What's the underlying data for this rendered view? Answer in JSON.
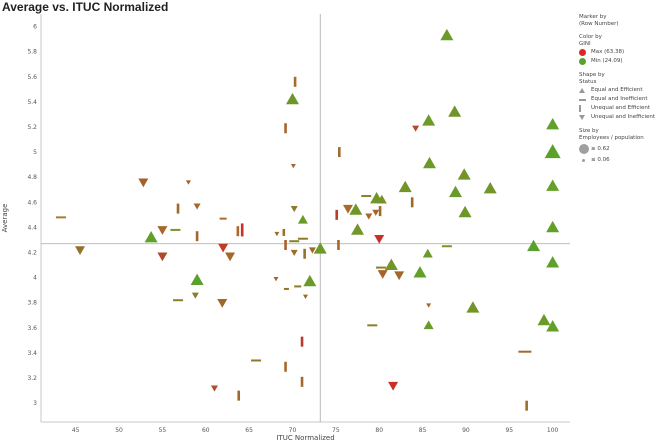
{
  "chart_data": {
    "type": "scatter",
    "title": "Average vs. ITUC Normalized",
    "xlabel": "ITUC Normalized",
    "ylabel": "Average",
    "xlim": [
      41,
      102
    ],
    "ylim": [
      2.85,
      6.1
    ],
    "x_ticks": [
      45,
      50,
      55,
      60,
      65,
      70,
      75,
      80,
      85,
      90,
      95,
      100
    ],
    "y_ticks": [
      3.0,
      3.2,
      3.4,
      3.6,
      3.8,
      4.0,
      4.2,
      4.4,
      4.6,
      4.8,
      5.0,
      5.2,
      5.4,
      5.6,
      5.8,
      6.0
    ],
    "x_tick_labels": [
      "45",
      "50",
      "55",
      "60",
      "65",
      "70",
      "75",
      "80",
      "85",
      "90",
      "95",
      "100"
    ],
    "y_tick_labels": [
      "3",
      "3.2",
      "3.4",
      "3.6",
      "3.8",
      "4",
      "4.2",
      "4.4",
      "4.6",
      "4.8",
      "5",
      "5.2",
      "5.4",
      "5.6",
      "5.8",
      "6"
    ],
    "reference_lines": {
      "x": 73.2,
      "y": 4.27
    },
    "grid": false,
    "legend_position": "right",
    "colors": {
      "max": "#d42a2a",
      "min": "#5aa02c",
      "mid": "#a0602c",
      "axis": "#bbbbbb",
      "refline": "#aaaaaa"
    },
    "points": [
      {
        "x": 87.8,
        "y": 5.93,
        "shape": "up",
        "size": "l",
        "color": "#6b9a28"
      },
      {
        "x": 70.3,
        "y": 5.56,
        "shape": "v",
        "size": "m",
        "color": "#a86a2a"
      },
      {
        "x": 70.0,
        "y": 5.42,
        "shape": "up",
        "size": "l",
        "color": "#6e9628"
      },
      {
        "x": 88.7,
        "y": 5.32,
        "shape": "up",
        "size": "l",
        "color": "#70942a"
      },
      {
        "x": 85.7,
        "y": 5.25,
        "shape": "up",
        "size": "l",
        "color": "#6c9a28"
      },
      {
        "x": 100.0,
        "y": 5.22,
        "shape": "up",
        "size": "l",
        "color": "#63a02a"
      },
      {
        "x": 69.2,
        "y": 5.19,
        "shape": "v",
        "size": "m",
        "color": "#a6642a"
      },
      {
        "x": 84.2,
        "y": 5.19,
        "shape": "down",
        "size": "s",
        "color": "#b8482a"
      },
      {
        "x": 75.4,
        "y": 5.0,
        "shape": "v",
        "size": "m",
        "color": "#9c702a"
      },
      {
        "x": 100.0,
        "y": 5.0,
        "shape": "up",
        "size": "xl",
        "color": "#5aa02c"
      },
      {
        "x": 85.8,
        "y": 4.91,
        "shape": "up",
        "size": "l",
        "color": "#6a9a28"
      },
      {
        "x": 70.1,
        "y": 4.89,
        "shape": "down",
        "size": "xs",
        "color": "#a86a2a"
      },
      {
        "x": 89.8,
        "y": 4.82,
        "shape": "up",
        "size": "l",
        "color": "#76922a"
      },
      {
        "x": 52.8,
        "y": 4.76,
        "shape": "down",
        "size": "m",
        "color": "#a0622a"
      },
      {
        "x": 58.0,
        "y": 4.76,
        "shape": "down",
        "size": "xs",
        "color": "#a2602a"
      },
      {
        "x": 83.0,
        "y": 4.72,
        "shape": "up",
        "size": "l",
        "color": "#74942a"
      },
      {
        "x": 92.8,
        "y": 4.71,
        "shape": "up",
        "size": "l",
        "color": "#72962a"
      },
      {
        "x": 100.0,
        "y": 4.73,
        "shape": "up",
        "size": "l",
        "color": "#65a02a"
      },
      {
        "x": 88.8,
        "y": 4.68,
        "shape": "up",
        "size": "l",
        "color": "#6c9a28"
      },
      {
        "x": 78.5,
        "y": 4.65,
        "shape": "h",
        "size": "m",
        "color": "#8c802a"
      },
      {
        "x": 79.7,
        "y": 4.63,
        "shape": "up",
        "size": "l",
        "color": "#6e9628"
      },
      {
        "x": 80.3,
        "y": 4.62,
        "shape": "up",
        "size": "m",
        "color": "#7a902a"
      },
      {
        "x": 83.8,
        "y": 4.6,
        "shape": "v",
        "size": "m",
        "color": "#a0662a"
      },
      {
        "x": 59.0,
        "y": 4.57,
        "shape": "down",
        "size": "s",
        "color": "#a8682a"
      },
      {
        "x": 56.8,
        "y": 4.55,
        "shape": "v",
        "size": "m",
        "color": "#9c6a2a"
      },
      {
        "x": 70.2,
        "y": 4.55,
        "shape": "down",
        "size": "s",
        "color": "#8a7a2a"
      },
      {
        "x": 76.4,
        "y": 4.55,
        "shape": "down",
        "size": "m",
        "color": "#a86a2a"
      },
      {
        "x": 77.3,
        "y": 4.54,
        "shape": "up",
        "size": "l",
        "color": "#709628"
      },
      {
        "x": 80.1,
        "y": 4.53,
        "shape": "v",
        "size": "m",
        "color": "#9c6a2a"
      },
      {
        "x": 89.9,
        "y": 4.52,
        "shape": "up",
        "size": "l",
        "color": "#6e9628"
      },
      {
        "x": 79.6,
        "y": 4.52,
        "shape": "down",
        "size": "s",
        "color": "#a8642a"
      },
      {
        "x": 75.1,
        "y": 4.5,
        "shape": "v",
        "size": "m",
        "color": "#b8402a"
      },
      {
        "x": 78.8,
        "y": 4.49,
        "shape": "down",
        "size": "s",
        "color": "#aa662a"
      },
      {
        "x": 43.3,
        "y": 4.48,
        "shape": "h",
        "size": "m",
        "color": "#a87a2a"
      },
      {
        "x": 62.0,
        "y": 4.47,
        "shape": "h",
        "size": "s",
        "color": "#ae6c2a"
      },
      {
        "x": 71.2,
        "y": 4.46,
        "shape": "up",
        "size": "m",
        "color": "#6a9a28"
      },
      {
        "x": 100.0,
        "y": 4.4,
        "shape": "up",
        "size": "l",
        "color": "#62a02a"
      },
      {
        "x": 64.2,
        "y": 4.38,
        "shape": "v",
        "size": "l",
        "color": "#c8302a"
      },
      {
        "x": 63.7,
        "y": 4.37,
        "shape": "v",
        "size": "m",
        "color": "#aa682a"
      },
      {
        "x": 56.5,
        "y": 4.38,
        "shape": "h",
        "size": "m",
        "color": "#7c922a"
      },
      {
        "x": 55.0,
        "y": 4.38,
        "shape": "down",
        "size": "m",
        "color": "#a6682a"
      },
      {
        "x": 77.5,
        "y": 4.38,
        "shape": "up",
        "size": "l",
        "color": "#72962a"
      },
      {
        "x": 69.0,
        "y": 4.36,
        "shape": "v",
        "size": "s",
        "color": "#9c702a"
      },
      {
        "x": 68.2,
        "y": 4.35,
        "shape": "down",
        "size": "xs",
        "color": "#a86a2a"
      },
      {
        "x": 59.0,
        "y": 4.33,
        "shape": "v",
        "size": "m",
        "color": "#a6662a"
      },
      {
        "x": 53.7,
        "y": 4.32,
        "shape": "up",
        "size": "l",
        "color": "#60a02a"
      },
      {
        "x": 71.2,
        "y": 4.31,
        "shape": "h",
        "size": "m",
        "color": "#8a7c2a"
      },
      {
        "x": 80.0,
        "y": 4.31,
        "shape": "down",
        "size": "m",
        "color": "#c8302a"
      },
      {
        "x": 70.2,
        "y": 4.29,
        "shape": "h",
        "size": "m",
        "color": "#86822a"
      },
      {
        "x": 69.2,
        "y": 4.26,
        "shape": "v",
        "size": "m",
        "color": "#aa622a"
      },
      {
        "x": 75.3,
        "y": 4.26,
        "shape": "v",
        "size": "m",
        "color": "#a8662a"
      },
      {
        "x": 87.8,
        "y": 4.25,
        "shape": "h",
        "size": "m",
        "color": "#7e902a"
      },
      {
        "x": 97.8,
        "y": 4.25,
        "shape": "up",
        "size": "l",
        "color": "#5aa02c"
      },
      {
        "x": 62.0,
        "y": 4.24,
        "shape": "down",
        "size": "m",
        "color": "#c23a2a"
      },
      {
        "x": 73.2,
        "y": 4.23,
        "shape": "up",
        "size": "l",
        "color": "#6a9a28"
      },
      {
        "x": 45.5,
        "y": 4.22,
        "shape": "down",
        "size": "m",
        "color": "#94702a"
      },
      {
        "x": 72.3,
        "y": 4.22,
        "shape": "down",
        "size": "s",
        "color": "#a6662a"
      },
      {
        "x": 70.2,
        "y": 4.2,
        "shape": "down",
        "size": "s",
        "color": "#9c6e2a"
      },
      {
        "x": 71.4,
        "y": 4.19,
        "shape": "v",
        "size": "m",
        "color": "#96722a"
      },
      {
        "x": 85.6,
        "y": 4.19,
        "shape": "up",
        "size": "m",
        "color": "#6c9a28"
      },
      {
        "x": 55.0,
        "y": 4.17,
        "shape": "down",
        "size": "m",
        "color": "#b04a2a"
      },
      {
        "x": 62.8,
        "y": 4.17,
        "shape": "down",
        "size": "m",
        "color": "#a06a2a"
      },
      {
        "x": 100.0,
        "y": 4.12,
        "shape": "up",
        "size": "l",
        "color": "#5ea02a"
      },
      {
        "x": 81.4,
        "y": 4.1,
        "shape": "up",
        "size": "l",
        "color": "#729428"
      },
      {
        "x": 80.2,
        "y": 4.08,
        "shape": "h",
        "size": "m",
        "color": "#86822a"
      },
      {
        "x": 84.7,
        "y": 4.04,
        "shape": "up",
        "size": "l",
        "color": "#62a02a"
      },
      {
        "x": 80.4,
        "y": 4.03,
        "shape": "down",
        "size": "m",
        "color": "#a8622a"
      },
      {
        "x": 82.3,
        "y": 4.02,
        "shape": "down",
        "size": "m",
        "color": "#a0682a"
      },
      {
        "x": 68.1,
        "y": 3.99,
        "shape": "down",
        "size": "xs",
        "color": "#aa662a"
      },
      {
        "x": 59.0,
        "y": 3.98,
        "shape": "up",
        "size": "l",
        "color": "#5aa02c"
      },
      {
        "x": 72.0,
        "y": 3.97,
        "shape": "up",
        "size": "l",
        "color": "#6c9a28"
      },
      {
        "x": 70.6,
        "y": 3.93,
        "shape": "h",
        "size": "s",
        "color": "#8a7a2a"
      },
      {
        "x": 69.3,
        "y": 3.91,
        "shape": "h",
        "size": "xs",
        "color": "#967028"
      },
      {
        "x": 58.8,
        "y": 3.86,
        "shape": "down",
        "size": "s",
        "color": "#86802a"
      },
      {
        "x": 71.5,
        "y": 3.85,
        "shape": "down",
        "size": "xs",
        "color": "#9c6a2a"
      },
      {
        "x": 56.8,
        "y": 3.82,
        "shape": "h",
        "size": "m",
        "color": "#86822a"
      },
      {
        "x": 61.9,
        "y": 3.8,
        "shape": "down",
        "size": "m",
        "color": "#a0662a"
      },
      {
        "x": 85.7,
        "y": 3.78,
        "shape": "down",
        "size": "xs",
        "color": "#a86a2a"
      },
      {
        "x": 90.8,
        "y": 3.76,
        "shape": "up",
        "size": "l",
        "color": "#729428"
      },
      {
        "x": 99.0,
        "y": 3.66,
        "shape": "up",
        "size": "l",
        "color": "#6c9a28"
      },
      {
        "x": 85.7,
        "y": 3.62,
        "shape": "up",
        "size": "m",
        "color": "#6c9a28"
      },
      {
        "x": 79.2,
        "y": 3.62,
        "shape": "h",
        "size": "m",
        "color": "#8a7e2a"
      },
      {
        "x": 100.0,
        "y": 3.61,
        "shape": "up",
        "size": "l",
        "color": "#62a02a"
      },
      {
        "x": 71.1,
        "y": 3.49,
        "shape": "v",
        "size": "m",
        "color": "#b83a2a"
      },
      {
        "x": 96.8,
        "y": 3.41,
        "shape": "h",
        "size": "l",
        "color": "#a06a2a"
      },
      {
        "x": 65.8,
        "y": 3.34,
        "shape": "h",
        "size": "m",
        "color": "#8a7a2a"
      },
      {
        "x": 69.2,
        "y": 3.29,
        "shape": "v",
        "size": "m",
        "color": "#a6682a"
      },
      {
        "x": 71.1,
        "y": 3.17,
        "shape": "v",
        "size": "m",
        "color": "#a06a2a"
      },
      {
        "x": 81.6,
        "y": 3.14,
        "shape": "down",
        "size": "m",
        "color": "#c83028"
      },
      {
        "x": 61.0,
        "y": 3.12,
        "shape": "down",
        "size": "s",
        "color": "#b04e2a"
      },
      {
        "x": 63.8,
        "y": 3.06,
        "shape": "v",
        "size": "m",
        "color": "#a0682a"
      },
      {
        "x": 97.0,
        "y": 2.98,
        "shape": "v",
        "size": "m",
        "color": "#9c702a"
      }
    ]
  },
  "legend": {
    "marker_title": "Marker by",
    "marker_sub": "(Row Number)",
    "color_title": "Color by",
    "color_sub": "GINI",
    "color_max": "Max (63.38)",
    "color_min": "Min (24.09)",
    "shape_title": "Shape by",
    "shape_sub": "Status",
    "shape_items": [
      "Equal and Efficient",
      "Equal and Inefficient",
      "Unequal and Efficient",
      "Unequal and Inefficient"
    ],
    "size_title": "Size by",
    "size_sub": "Employees / population",
    "size_large": "≥ 0.62",
    "size_small": "≤ 0.06"
  }
}
